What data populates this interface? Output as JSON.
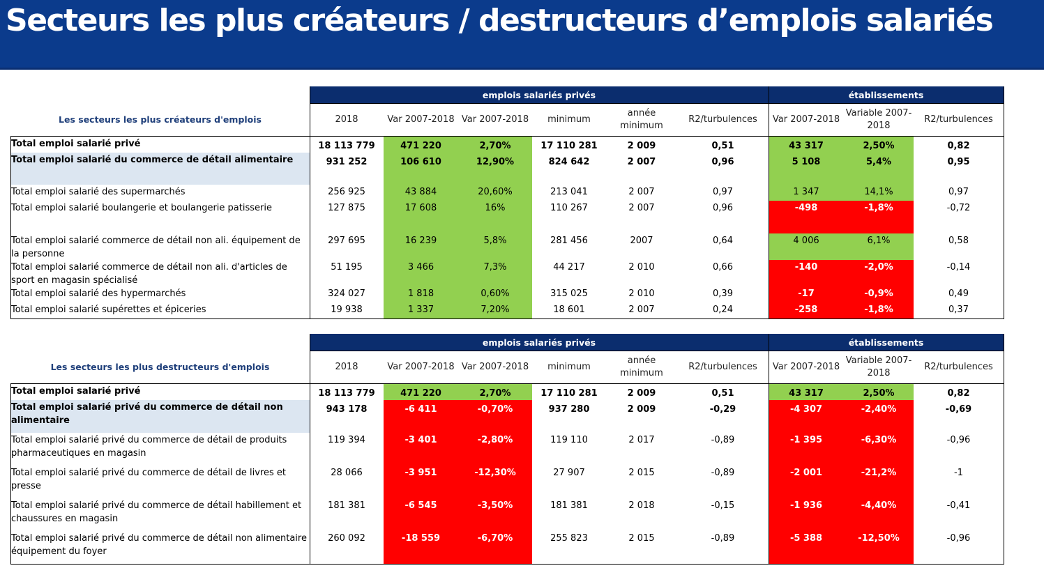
{
  "title": "Secteurs les plus créateurs / destructeurs d’emplois salariés",
  "colors": {
    "green": "#92d050",
    "red": "#ff0000",
    "blue_band": "#0b2d6e",
    "title_bg": "#0b3b8c",
    "highlight": "#dce6f1"
  },
  "headers": {
    "group1": "emplois salariés privés",
    "group2": "établissements",
    "cols": [
      "2018",
      "Var 2007-2018",
      "Var 2007-2018",
      "minimum",
      "année\nminimum",
      "R2/turbulences",
      "Var 2007-2018",
      "Variable 2007-\n2018",
      "R2/turbulences"
    ]
  },
  "tables": [
    {
      "subject": "Les secteurs les plus créateurs d'emplois",
      "rows": [
        {
          "label": "Total emploi salarié privé",
          "bold": true,
          "cells": [
            "18 113 779",
            "471 220",
            "2,70%",
            "17 110 281",
            "2 009",
            "0,51",
            "43 317",
            "2,50%",
            "0,82"
          ],
          "emp": "green",
          "etab": "green"
        },
        {
          "label": "Total emploi salarié du commerce de détail alimentaire",
          "bold": true,
          "highlight": true,
          "cells": [
            "931 252",
            "106 610",
            "12,90%",
            "824 642",
            "2 007",
            "0,96",
            "5 108",
            "5,4%",
            "0,95"
          ],
          "emp": "green",
          "etab": "green"
        },
        {
          "label": "Total emploi salarié des supermarchés",
          "cells": [
            "256 925",
            "43 884",
            "20,60%",
            "213 041",
            "2 007",
            "0,97",
            "1 347",
            "14,1%",
            "0,97"
          ],
          "emp": "green",
          "etab": "green"
        },
        {
          "label": "Total emploi salarié boulangerie et boulangerie patisserie",
          "cells": [
            "127 875",
            "17 608",
            "16%",
            "110 267",
            "2 007",
            "0,96",
            "-498",
            "-1,8%",
            "-0,72"
          ],
          "emp": "green",
          "etab": "red"
        },
        {
          "label": "Total emploi salarié commerce de détail non ali. équipement de la personne",
          "cells": [
            "297 695",
            "16 239",
            "5,8%",
            "281 456",
            "2007",
            "0,64",
            "4 006",
            "6,1%",
            "0,58"
          ],
          "emp": "green",
          "etab": "green"
        },
        {
          "label": "Total emploi salarié commerce de détail non ali.  d'articles de sport en magasin spécialisé",
          "cells": [
            "51 195",
            "3 466",
            "7,3%",
            "44 217",
            "2 010",
            "0,66",
            "-140",
            "-2,0%",
            "-0,14"
          ],
          "emp": "green",
          "etab": "red"
        },
        {
          "label": "Total emploi salarié des hypermarchés",
          "cells": [
            "324 027",
            "1 818",
            "0,60%",
            "315 025",
            "2 010",
            "0,39",
            "-17",
            "-0,9%",
            "0,49"
          ],
          "emp": "green",
          "etab": "red"
        },
        {
          "label": "Total emploi salarié supérettes et épiceries",
          "cells": [
            "19 938",
            "1 337",
            "7,20%",
            "18 601",
            "2 007",
            "0,24",
            "-258",
            "-1,8%",
            "0,37"
          ],
          "emp": "green",
          "etab": "red"
        }
      ]
    },
    {
      "subject": "Les secteurs les plus destructeurs d'emplois",
      "rows": [
        {
          "label": "Total emploi salarié privé",
          "bold": true,
          "cells": [
            "18 113 779",
            "471 220",
            "2,70%",
            "17 110 281",
            "2 009",
            "0,51",
            "43 317",
            "2,50%",
            "0,82"
          ],
          "emp": "green",
          "etab": "green"
        },
        {
          "label": "Total emploi salarié privé du commerce de détail non alimentaire",
          "bold": true,
          "highlight": true,
          "cells": [
            "943 178",
            "-6 411",
            "-0,70%",
            "937 280",
            "2 009",
            "-0,29",
            "-4 307",
            "-2,40%",
            "-0,69"
          ],
          "emp": "red",
          "etab": "red"
        },
        {
          "label": "Total emploi salarié privé du commerce de détail de produits pharmaceutiques en magasin",
          "cells": [
            "119 394",
            "-3 401",
            "-2,80%",
            "119 110",
            "2 017",
            "-0,89",
            "-1 395",
            "-6,30%",
            "-0,96"
          ],
          "emp": "red",
          "etab": "red"
        },
        {
          "label": "Total emploi salarié privé du commerce de détail de livres et presse",
          "cells": [
            "28 066",
            "-3 951",
            "-12,30%",
            "27 907",
            "2 015",
            "-0,89",
            "-2 001",
            "-21,2%",
            "-1"
          ],
          "emp": "red",
          "etab": "red"
        },
        {
          "label": "Total emploi salarié privé du commerce de détail habillement et chaussures en magasin",
          "cells": [
            "181 381",
            "-6 545",
            "-3,50%",
            "181 381",
            "2 018",
            "-0,15",
            "-1 936",
            "-4,40%",
            "-0,41"
          ],
          "emp": "red",
          "etab": "red"
        },
        {
          "label": "Total emploi salarié privé du commerce de détail non alimentaire équipement du foyer",
          "cells": [
            "260 092",
            "-18 559",
            "-6,70%",
            "255 823",
            "2 015",
            "-0,89",
            "-5 388",
            "-12,50%",
            "-0,96"
          ],
          "emp": "red",
          "etab": "red"
        }
      ]
    }
  ]
}
